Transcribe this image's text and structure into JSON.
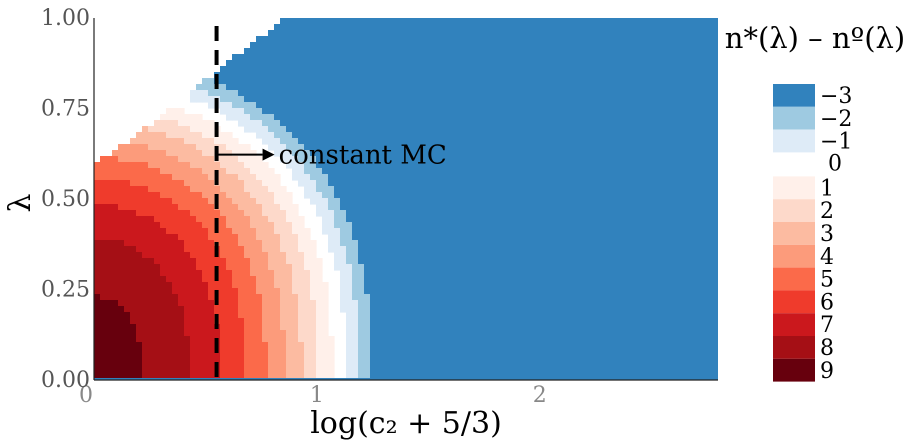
{
  "chart_data": {
    "type": "heatmap",
    "title": "",
    "xlabel": "log(c₂ + 5/3)",
    "ylabel": "λ",
    "xlim": [
      0,
      2.8
    ],
    "ylim": [
      0,
      1
    ],
    "x_ticks": [
      {
        "value": 0,
        "label": "0"
      },
      {
        "value": 1,
        "label": "1"
      },
      {
        "value": 2,
        "label": "2"
      }
    ],
    "y_ticks": [
      {
        "value": 0,
        "label": "0.00"
      },
      {
        "value": 0.25,
        "label": "0.25"
      },
      {
        "value": 0.5,
        "label": "0.50"
      },
      {
        "value": 0.75,
        "label": "0.75"
      },
      {
        "value": 1,
        "label": "1.00"
      }
    ],
    "grid": false,
    "legend": {
      "title": "n*(λ) – nº(λ)",
      "placement": "right",
      "levels": [
        {
          "value": -3,
          "label": "−3",
          "color": "#3182bd"
        },
        {
          "value": -2,
          "label": "−2",
          "color": "#9ecae1"
        },
        {
          "value": -1,
          "label": "−1",
          "color": "#deebf7"
        },
        {
          "value": 0,
          "label": "0",
          "color": "#ffffff"
        },
        {
          "value": 1,
          "label": "1",
          "color": "#fff0ea"
        },
        {
          "value": 2,
          "label": "2",
          "color": "#fdd9ca"
        },
        {
          "value": 3,
          "label": "3",
          "color": "#fcbba1"
        },
        {
          "value": 4,
          "label": "4",
          "color": "#fc9b7b"
        },
        {
          "value": 5,
          "label": "5",
          "color": "#fb6a4a"
        },
        {
          "value": 6,
          "label": "6",
          "color": "#ef3b2c"
        },
        {
          "value": 7,
          "label": "7",
          "color": "#cb181d"
        },
        {
          "value": 8,
          "label": "8",
          "color": "#a50f15"
        },
        {
          "value": 9,
          "label": "9",
          "color": "#67000d"
        }
      ]
    },
    "annotation": {
      "text": "constant MC",
      "x": 0.55,
      "y": 0.7,
      "line_x": 0.55,
      "line_style": "dashed"
    },
    "feasible_region_upper_bound": [
      {
        "x": 0,
        "y": 0.6
      },
      {
        "x": 0.2,
        "y": 0.68
      },
      {
        "x": 0.4,
        "y": 0.78
      },
      {
        "x": 0.6,
        "y": 0.88
      },
      {
        "x": 0.8,
        "y": 0.97
      },
      {
        "x": 0.86,
        "y": 1.0
      }
    ]
  }
}
